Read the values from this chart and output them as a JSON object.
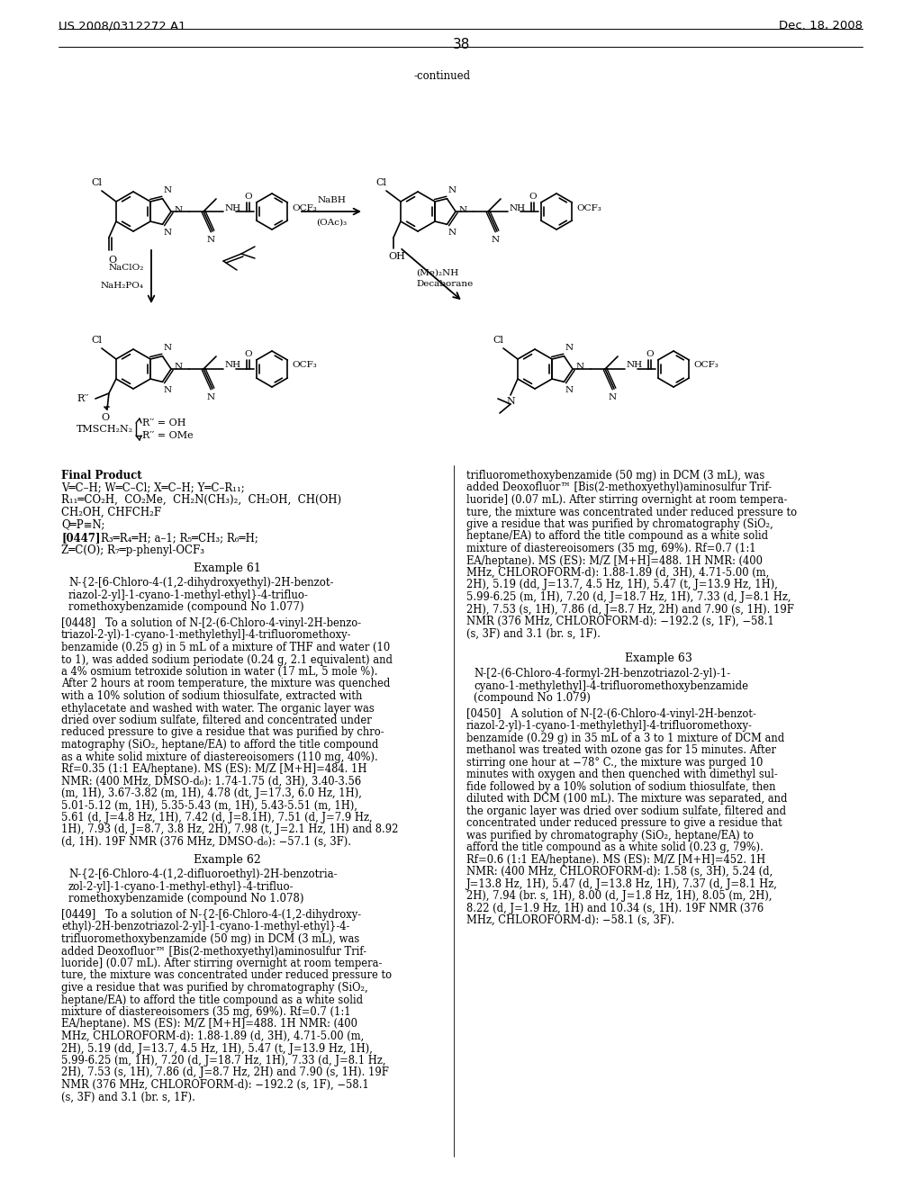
{
  "patent_number": "US 2008/0312272 A1",
  "patent_date": "Dec. 18, 2008",
  "page_number": "38",
  "continued": "-continued",
  "arrow1_top": "NaBH",
  "arrow1_bot": "(OAc)₃",
  "arrow2_left1": "NaClO₂",
  "arrow2_left2": "NaH₂PO₄",
  "arrow2_right1": "(Me)₂NH",
  "arrow2_right2": "Decaborane",
  "tmsch2n2": "TMSCH₂N₂",
  "rpp_oh": "R′′ = OH",
  "rpp_ome": "R′′ = OMe",
  "left_col_texts": [
    {
      "t": "Final Product",
      "bold": true
    },
    {
      "t": "V═C–H; W═C–Cl; X═C–H; Y═C–R₁₁;",
      "bold": false
    },
    {
      "t": "R₁₁═CO₂H,  CO₂Me,  CH₂N(CH₃)₂,  CH₂OH,  CH(OH)",
      "bold": false
    },
    {
      "t": "CH₂OH, CHFCH₂F",
      "bold": false
    },
    {
      "t": "Q═P≡N;",
      "bold": false
    }
  ],
  "para0447_ref": "[0447]",
  "para0447_a": "R₃═R₄═H; a–1; R₅═CH₃; R₆═H;",
  "para0447_b": "Z═C(O); R₇═p-phenyl-OCF₃",
  "ex61_hdr": "Example 61",
  "ex61_name1": "N-{2-[6-Chloro-4-(1,2-dihydroxyethyl)-2H-benzot-",
  "ex61_name2": "riazol-2-yl]-1-cyano-1-methyl-ethyl}-4-trifluo-",
  "ex61_name3": "romethoxybenzamide (compound No 1.077)",
  "para0448": "[0448]   To a solution of N-[2-(6-Chloro-4-vinyl-2H-benzo-\ntriazol-2-yl)-1-cyano-1-methylethyl]-4-trifluoromethoxy-\nbenzamide (0.25 g) in 5 mL of a mixture of THF and water (10\nto 1), was added sodium periodate (0.24 g, 2.1 equivalent) and\na 4% osmium tetroxide solution in water (17 mL, 5 mole %).\nAfter 2 hours at room temperature, the mixture was quenched\nwith a 10% solution of sodium thiosulfate, extracted with\nethylacetate and washed with water. The organic layer was\ndried over sodium sulfate, filtered and concentrated under\nreduced pressure to give a residue that was purified by chro-\nmatography (SiO₂, heptane/EA) to afford the title compound\nas a white solid mixture of diastereoisomers (110 mg, 40%).\nRf=0.35 (1:1 EA/heptane). MS (ES): M/Z [M+H]=484. 1H\nNMR: (400 MHz, DMSO-d₆): 1.74-1.75 (d, 3H), 3.40-3.56\n(m, 1H), 3.67-3.82 (m, 1H), 4.78 (dt, J=17.3, 6.0 Hz, 1H),\n5.01-5.12 (m, 1H), 5.35-5.43 (m, 1H), 5.43-5.51 (m, 1H),\n5.61 (d, J=4.8 Hz, 1H), 7.42 (d, J=8.1H), 7.51 (d, J=7.9 Hz,\n1H), 7.93 (d, J=8.7, 3.8 Hz, 2H), 7.98 (t, J=2.1 Hz, 1H) and 8.92\n(d, 1H). 19F NMR (376 MHz, DMSO-d₆): −57.1 (s, 3F).",
  "ex62_hdr": "Example 62",
  "ex62_name1": "N-{2-[6-Chloro-4-(1,2-difluoroethyl)-2H-benzotria-",
  "ex62_name2": "zol-2-yl]-1-cyano-1-methyl-ethyl}-4-trifluo-",
  "ex62_name3": "romethoxybenzamide (compound No 1.078)",
  "para0449": "[0449]   To a solution of N-{2-[6-Chloro-4-(1,2-dihydroxy-\nethyl)-2H-benzotriazol-2-yl]-1-cyano-1-methyl-ethyl}-4-\ntrifluoromethoxybenzamide (50 mg) in DCM (3 mL), was\nadded Deoxofluor™ [Bis(2-methoxyethyl)aminosulfur Trif-\nluoride] (0.07 mL). After stirring overnight at room tempera-\nture, the mixture was concentrated under reduced pressure to\ngive a residue that was purified by chromatography (SiO₂,\nheptane/EA) to afford the title compound as a white solid\nmixture of diastereoisomers (35 mg, 69%). Rf=0.7 (1:1\nEA/heptane). MS (ES): M/Z [M+H]=488. 1H NMR: (400\nMHz, CHLOROFORM-d): 1.88-1.89 (d, 3H), 4.71-5.00 (m,\n2H), 5.19 (dd, J=13.7, 4.5 Hz, 1H), 5.47 (t, J=13.9 Hz, 1H),\n5.99-6.25 (m, 1H), 7.20 (d, J=18.7 Hz, 1H), 7.33 (d, J=8.1 Hz,\n2H), 7.53 (s, 1H), 7.86 (d, J=8.7 Hz, 2H) and 7.90 (s, 1H). 19F\nNMR (376 MHz, CHLOROFORM-d): −192.2 (s, 1F), −58.1\n(s, 3F) and 3.1 (br. s, 1F).",
  "right_col_top": "trifluoromethoxybenzamide (50 mg) in DCM (3 mL), was\nadded Deoxofluor™ [Bis(2-methoxyethyl)aminosulfur Trif-\nluoride] (0.07 mL). After stirring overnight at room tempera-\nture, the mixture was concentrated under reduced pressure to\ngive a residue that was purified by chromatography (SiO₂,\nheptane/EA) to afford the title compound as a white solid\nmixture of diastereoisomers (35 mg, 69%). Rf=0.7 (1:1\nEA/heptane). MS (ES): M/Z [M+H]=488. 1H NMR: (400\nMHz, CHLOROFORM-d): 1.88-1.89 (d, 3H), 4.71-5.00 (m,\n2H), 5.19 (dd, J=13.7, 4.5 Hz, 1H), 5.47 (t, J=13.9 Hz, 1H),\n5.99-6.25 (m, 1H), 7.20 (d, J=18.7 Hz, 1H), 7.33 (d, J=8.1 Hz,\n2H), 7.53 (s, 1H), 7.86 (d, J=8.7 Hz, 2H) and 7.90 (s, 1H). 19F\nNMR (376 MHz, CHLOROFORM-d): −192.2 (s, 1F), −58.1\n(s, 3F) and 3.1 (br. s, 1F).",
  "ex63_hdr": "Example 63",
  "ex63_name1": "N-[2-(6-Chloro-4-formyl-2H-benzotriazol-2-yl)-1-",
  "ex63_name2": "cyano-1-methylethyl]-4-trifluoromethoxybenzamide",
  "ex63_name3": "(compound No 1.079)",
  "para0450": "[0450]   A solution of N-[2-(6-Chloro-4-vinyl-2H-benzot-\nriazol-2-yl)-1-cyano-1-methylethyl]-4-trifluoromethoxy-\nbenzamide (0.29 g) in 35 mL of a 3 to 1 mixture of DCM and\nmethanol was treated with ozone gas for 15 minutes. After\nstirring one hour at −78° C., the mixture was purged 10\nminutes with oxygen and then quenched with dimethyl sul-\nfide followed by a 10% solution of sodium thiosulfate, then\ndiluted with DCM (100 mL). The mixture was separated, and\nthe organic layer was dried over sodium sulfate, filtered and\nconcentrated under reduced pressure to give a residue that\nwas purified by chromatography (SiO₂, heptane/EA) to\nafford the title compound as a white solid (0.23 g, 79%).\nRf=0.6 (1:1 EA/heptane). MS (ES): M/Z [M+H]=452. 1H\nNMR: (400 MHz, CHLOROFORM-d): 1.58 (s, 3H), 5.24 (d,\nJ=13.8 Hz, 1H), 5.47 (d, J=13.8 Hz, 1H), 7.37 (d, J=8.1 Hz,\n2H), 7.94 (br. s, 1H), 8.00 (d, J=1.8 Hz, 1H), 8.05 (m, 2H),\n8.22 (d, J=1.9 Hz, 1H) and 10.34 (s, 1H). 19F NMR (376\nMHz, CHLOROFORM-d): −58.1 (s, 3F)."
}
